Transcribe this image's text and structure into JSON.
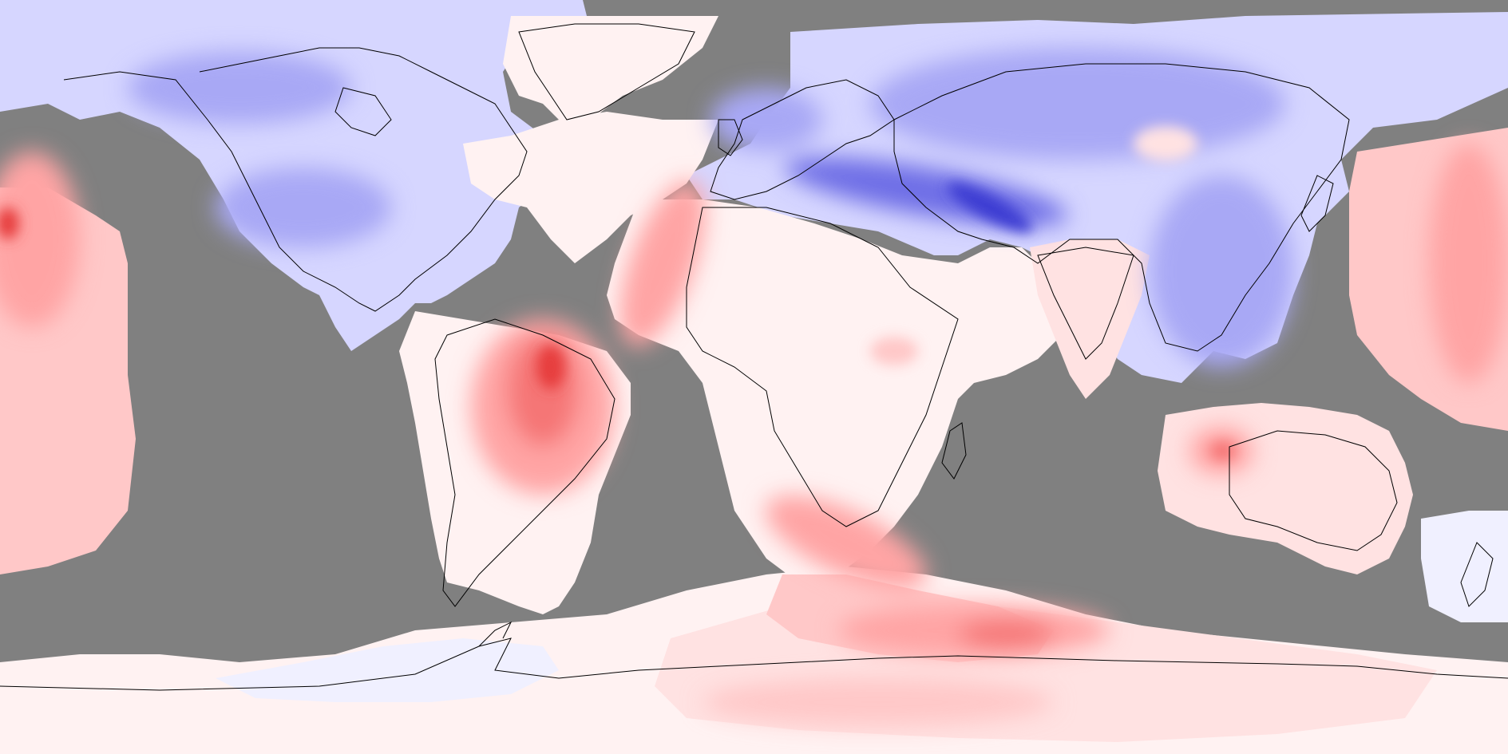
{
  "map": {
    "projection": "equirectangular",
    "field": "anomaly",
    "colors": {
      "no_data": "#808080",
      "coastline": "#000000",
      "neutral": "#FFF2F2",
      "cold_1": "#F0F0FF",
      "cold_2": "#D6D6FF",
      "cold_3": "#A8A8F5",
      "cold_4": "#6E6EE6",
      "cold_5": "#3C3CD2",
      "warm_1": "#FFE2E2",
      "warm_2": "#FFC8C8",
      "warm_3": "#FFA4A4",
      "warm_4": "#F57676",
      "warm_5": "#E63C3C"
    }
  }
}
